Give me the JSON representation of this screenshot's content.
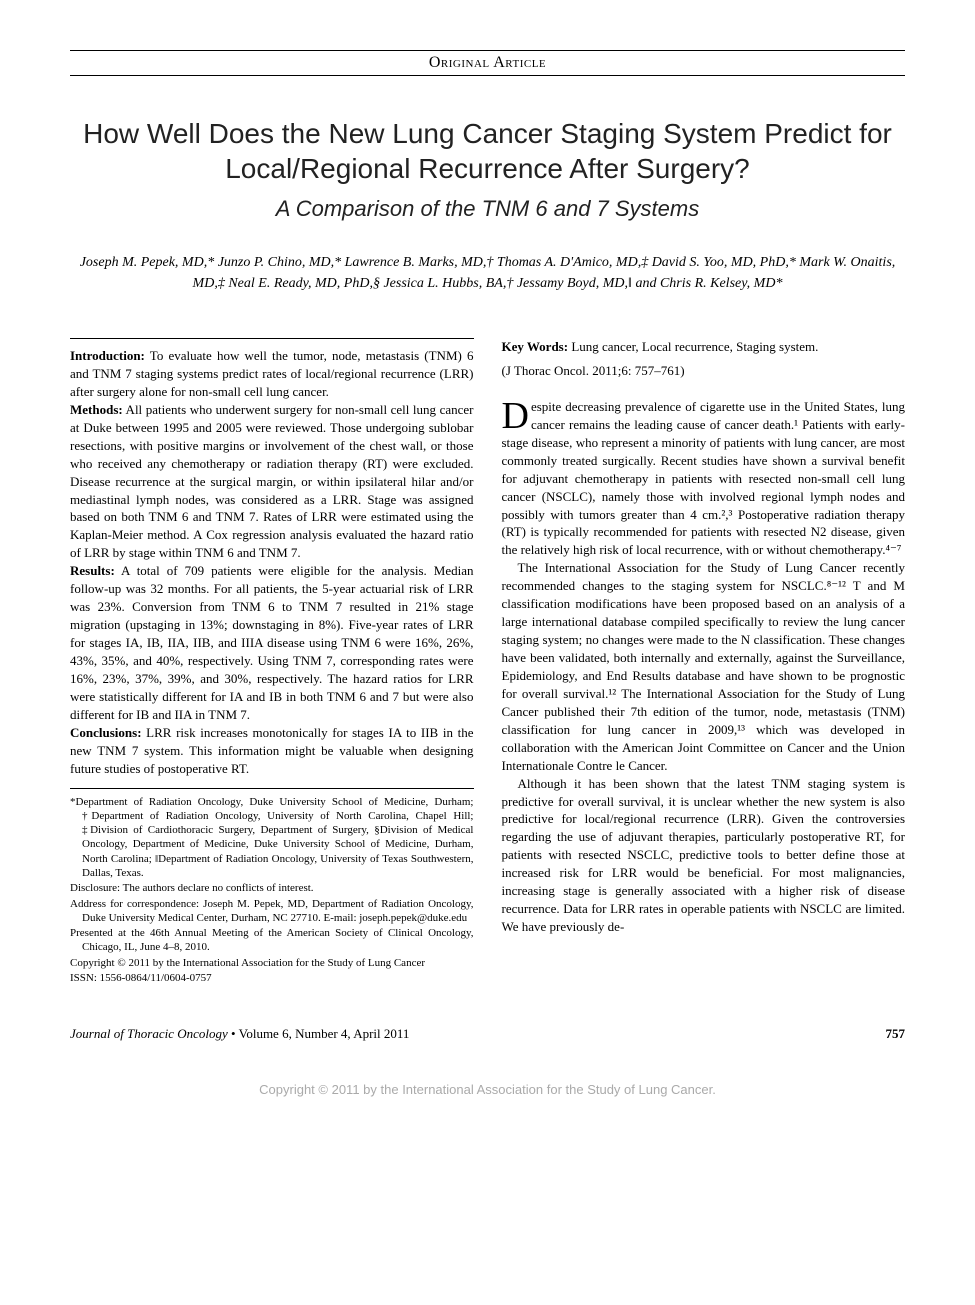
{
  "header": {
    "section_label": "Original Article",
    "title": "How Well Does the New Lung Cancer Staging System Predict for Local/Regional Recurrence After Surgery?",
    "subtitle": "A Comparison of the TNM 6 and 7 Systems",
    "authors": "Joseph M. Pepek, MD,* Junzo P. Chino, MD,* Lawrence B. Marks, MD,† Thomas A. D'Amico, MD,‡ David S. Yoo, MD, PhD,* Mark W. Onaitis, MD,‡ Neal E. Ready, MD, PhD,§ Jessica L. Hubbs, BA,† Jessamy Boyd, MD,‖ and Chris R. Kelsey, MD*"
  },
  "abstract": {
    "introduction_label": "Introduction:",
    "introduction": " To evaluate how well the tumor, node, metastasis (TNM) 6 and TNM 7 staging systems predict rates of local/regional recurrence (LRR) after surgery alone for non-small cell lung cancer.",
    "methods_label": "Methods:",
    "methods": " All patients who underwent surgery for non-small cell lung cancer at Duke between 1995 and 2005 were reviewed. Those undergoing sublobar resections, with positive margins or involvement of the chest wall, or those who received any chemotherapy or radiation therapy (RT) were excluded. Disease recurrence at the surgical margin, or within ipsilateral hilar and/or mediastinal lymph nodes, was considered as a LRR. Stage was assigned based on both TNM 6 and TNM 7. Rates of LRR were estimated using the Kaplan-Meier method. A Cox regression analysis evaluated the hazard ratio of LRR by stage within TNM 6 and TNM 7.",
    "results_label": "Results:",
    "results": " A total of 709 patients were eligible for the analysis. Median follow-up was 32 months. For all patients, the 5-year actuarial risk of LRR was 23%. Conversion from TNM 6 to TNM 7 resulted in 21% stage migration (upstaging in 13%; downstaging in 8%). Five-year rates of LRR for stages IA, IB, IIA, IIB, and IIIA disease using TNM 6 were 16%, 26%, 43%, 35%, and 40%, respectively. Using TNM 7, corresponding rates were 16%, 23%, 37%, 39%, and 30%, respectively. The hazard ratios for LRR were statistically different for IA and IB in both TNM 6 and 7 but were also different for IB and IIA in TNM 7.",
    "conclusions_label": "Conclusions:",
    "conclusions": " LRR risk increases monotonically for stages IA to IIB in the new TNM 7 system. This information might be valuable when designing future studies of postoperative RT."
  },
  "footnotes": {
    "affiliations": "*Department of Radiation Oncology, Duke University School of Medicine, Durham; †Department of Radiation Oncology, University of North Carolina, Chapel Hill; ‡Division of Cardiothoracic Surgery, Department of Surgery, §Division of Medical Oncology, Department of Medicine, Duke University School of Medicine, Durham, North Carolina; ‖Department of Radiation Oncology, University of Texas Southwestern, Dallas, Texas.",
    "disclosure": "Disclosure: The authors declare no conflicts of interest.",
    "correspondence": "Address for correspondence: Joseph M. Pepek, MD, Department of Radiation Oncology, Duke University Medical Center, Durham, NC 27710. E-mail: joseph.pepek@duke.edu",
    "presented": "Presented at the 46th Annual Meeting of the American Society of Clinical Oncology, Chicago, IL, June 4–8, 2010.",
    "copyright": "Copyright © 2011 by the International Association for the Study of Lung Cancer",
    "issn": "ISSN: 1556-0864/11/0604-0757"
  },
  "right_col": {
    "keywords_label": "Key Words:",
    "keywords": " Lung cancer, Local recurrence, Staging system.",
    "citation": "(J Thorac Oncol. 2011;6: 757–761)",
    "para1_dropcap": "D",
    "para1": "espite decreasing prevalence of cigarette use in the United States, lung cancer remains the leading cause of cancer death.¹ Patients with early-stage disease, who represent a minority of patients with lung cancer, are most commonly treated surgically. Recent studies have shown a survival benefit for adjuvant chemotherapy in patients with resected non-small cell lung cancer (NSCLC), namely those with involved regional lymph nodes and possibly with tumors greater than 4 cm.²,³ Postoperative radiation therapy (RT) is typically recommended for patients with resected N2 disease, given the relatively high risk of local recurrence, with or without chemotherapy.⁴⁻⁷",
    "para2": "The International Association for the Study of Lung Cancer recently recommended changes to the staging system for NSCLC.⁸⁻¹² T and M classification modifications have been proposed based on an analysis of a large international database compiled specifically to review the lung cancer staging system; no changes were made to the N classification. These changes have been validated, both internally and externally, against the Surveillance, Epidemiology, and End Results database and have shown to be prognostic for overall survival.¹² The International Association for the Study of Lung Cancer published their 7th edition of the tumor, node, metastasis (TNM) classification for lung cancer in 2009,¹³ which was developed in collaboration with the American Joint Committee on Cancer and the Union Internationale Contre le Cancer.",
    "para3": "Although it has been shown that the latest TNM staging system is predictive for overall survival, it is unclear whether the new system is also predictive for local/regional recurrence (LRR). Given the controversies regarding the use of adjuvant therapies, particularly postoperative RT, for patients with resected NSCLC, predictive tools to better define those at increased risk for LRR would be beneficial. For most malignancies, increasing stage is generally associated with a higher risk of disease recurrence. Data for LRR rates in operable patients with NSCLC are limited. We have previously de-"
  },
  "footer": {
    "journal": "Journal of Thoracic Oncology",
    "issue": " • Volume 6, Number 4, April 2011",
    "page": "757"
  },
  "page_copyright": "Copyright © 2011 by the International Association for the Study of Lung Cancer."
}
